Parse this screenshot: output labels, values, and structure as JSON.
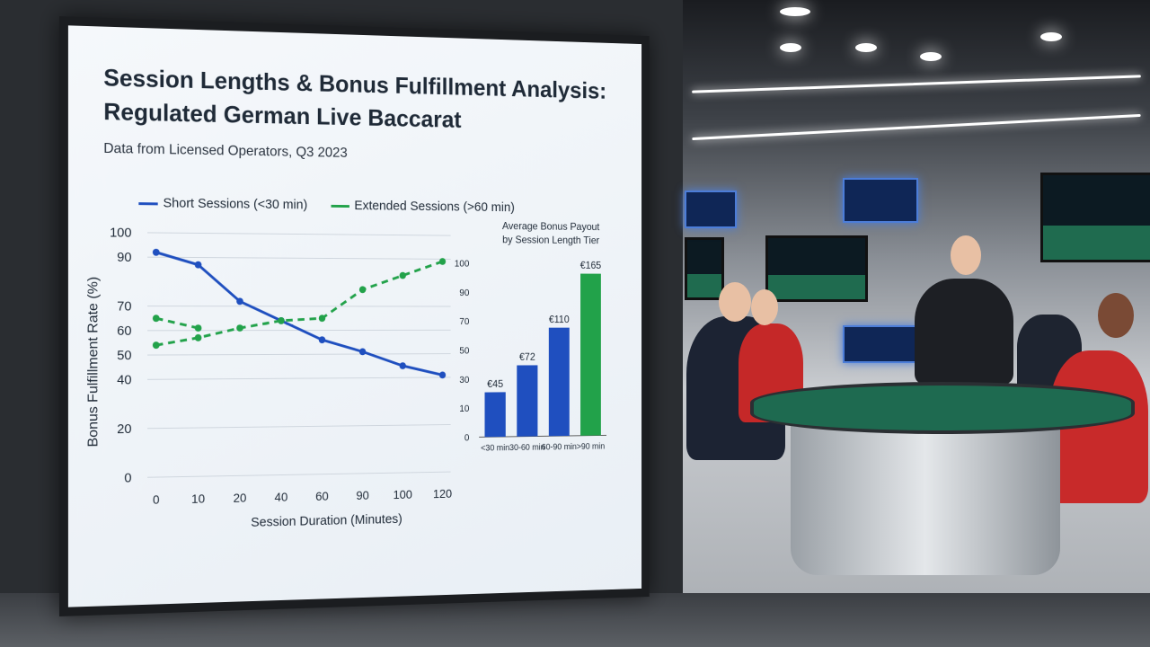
{
  "chart": {
    "title_line1": "Session Lengths & Bonus Fulfillment Analysis:",
    "title_line2": "Regulated German Live Baccarat",
    "subtitle": "Data from Licensed Operators, Q3 2023",
    "legend_short": "Short Sessions (<30 min)",
    "legend_extended": "Extended Sessions (>60 min)",
    "ylabel": "Bonus Fulfillment Rate (%)",
    "xlabel": "Session Duration (Minutes)",
    "bar_title_line1": "Average Bonus Payout",
    "bar_title_line2": "by Session Length Tier"
  },
  "chart_data": [
    {
      "type": "line",
      "x_ticks": [
        "0",
        "10",
        "20",
        "40",
        "60",
        "90",
        "100",
        "120"
      ],
      "y_ticks": [
        "0",
        "20",
        "40",
        "50",
        "60",
        "70",
        "90",
        "100"
      ],
      "ylim": [
        0,
        100
      ],
      "series": [
        {
          "name": "Short Sessions (<30 min)",
          "color": "#1f4fbf",
          "points": [
            [
              0,
              92
            ],
            [
              10,
              87
            ],
            [
              20,
              72
            ],
            [
              40,
              64
            ],
            [
              60,
              56
            ],
            [
              90,
              51
            ],
            [
              100,
              45
            ],
            [
              120,
              41
            ]
          ]
        },
        {
          "name": "Extended Sessions (>60 min)",
          "color": "#22a24a",
          "points": [
            [
              0,
              54
            ],
            [
              10,
              57
            ],
            [
              20,
              61
            ],
            [
              40,
              64
            ],
            [
              60,
              65
            ],
            [
              90,
              77
            ],
            [
              100,
              83
            ],
            [
              120,
              89
            ]
          ]
        },
        {
          "name": "",
          "color": "#22a24a",
          "points": [
            [
              0,
              65
            ],
            [
              10,
              61
            ]
          ]
        }
      ],
      "grid": true,
      "legend": "top"
    },
    {
      "type": "bar",
      "categories": [
        "<30 min",
        "30-60 min",
        "60-90 min",
        ">90 min"
      ],
      "values": [
        45,
        72,
        110,
        165
      ],
      "labels": [
        "€45",
        "€72",
        "€110",
        "€165"
      ],
      "colors": [
        "#1f4fbf",
        "#1f4fbf",
        "#1f4fbf",
        "#22a24a"
      ],
      "y_ticks": [
        "0",
        "10",
        "30",
        "50",
        "70",
        "90",
        "100"
      ],
      "ylim": [
        0,
        175
      ]
    }
  ]
}
